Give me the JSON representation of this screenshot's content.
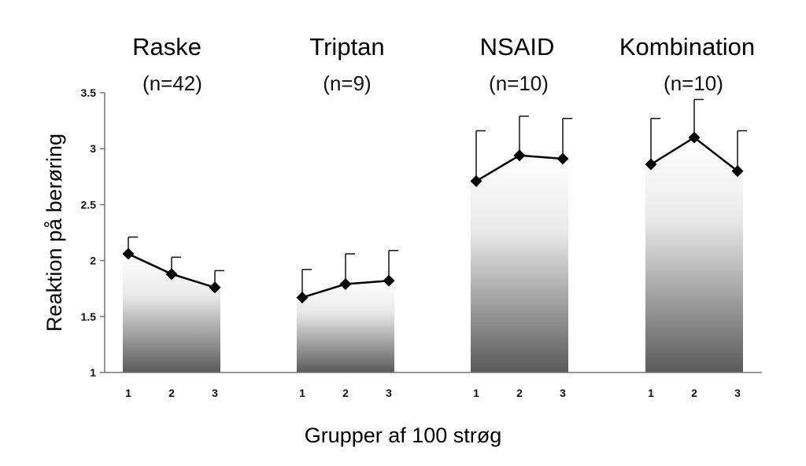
{
  "chart_data": {
    "type": "line",
    "xlabel": "Grupper af 100 strøg",
    "ylabel": "Reaktion på berøring",
    "ylim": [
      1,
      3.5
    ],
    "yticks": [
      "1",
      "1.5",
      "2",
      "2.5",
      "3",
      "3.5"
    ],
    "x": [
      "1",
      "2",
      "3"
    ],
    "grid": false,
    "legend": "none",
    "series": [
      {
        "name": "Raske",
        "n_label": "(n=42)",
        "values": [
          2.06,
          1.88,
          1.76
        ],
        "upper_error": [
          2.21,
          2.03,
          1.91
        ]
      },
      {
        "name": "Triptan",
        "n_label": "(n=9)",
        "values": [
          1.67,
          1.79,
          1.82
        ],
        "upper_error": [
          1.92,
          2.06,
          2.09
        ]
      },
      {
        "name": "NSAID",
        "n_label": "(n=10)",
        "values": [
          2.71,
          2.94,
          2.91
        ],
        "upper_error": [
          3.16,
          3.29,
          3.27
        ]
      },
      {
        "name": "Kombination",
        "n_label": "(n=10)",
        "values": [
          2.86,
          3.1,
          2.8
        ],
        "upper_error": [
          3.27,
          3.44,
          3.16
        ]
      }
    ]
  }
}
